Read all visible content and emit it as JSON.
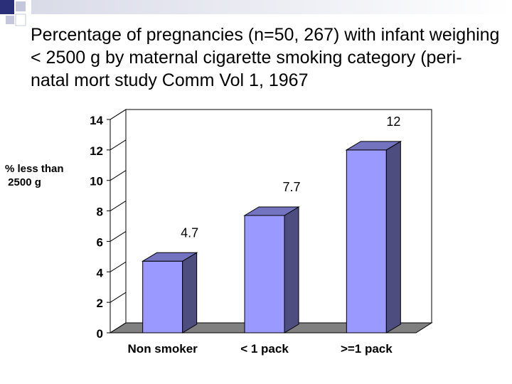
{
  "slide": {
    "title": "Percentage of pregnancies (n=50, 267) with infant weighing < 2500 g by maternal cigarette smoking category (peri-natal mort study Comm Vol 1, 1967"
  },
  "chart_data": {
    "type": "bar",
    "title": "",
    "xlabel": "",
    "ylabel": "% less than\n 2500 g",
    "categories": [
      "Non smoker",
      "< 1 pack",
      ">=1 pack"
    ],
    "values": [
      4.7,
      7.7,
      12
    ],
    "value_labels": [
      "4.7",
      "7.7",
      "12"
    ],
    "ylim": [
      0,
      14
    ],
    "yticks": [
      0,
      2,
      4,
      6,
      8,
      10,
      12,
      14
    ],
    "grid": false,
    "legend": "none",
    "bar_color": "#9999ff",
    "bar_side_color": "#4d4d80",
    "bar_top_color": "#7373bf",
    "floor_color": "#808080"
  }
}
